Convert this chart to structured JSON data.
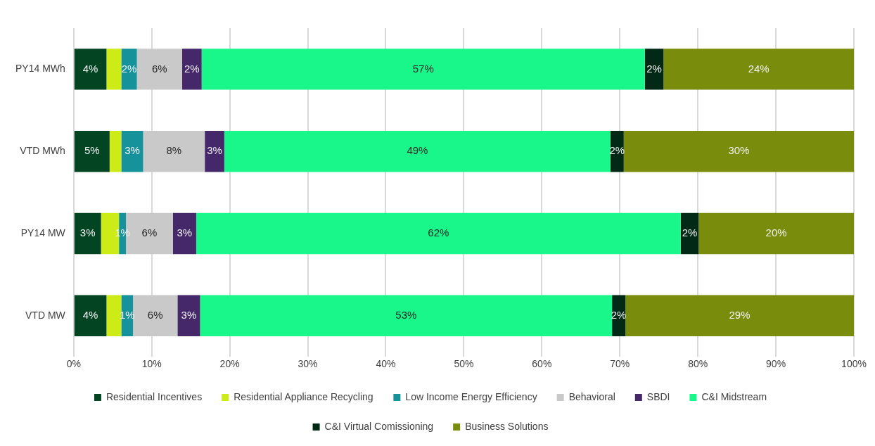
{
  "chart_data": {
    "type": "bar",
    "orientation": "horizontal",
    "stacked": true,
    "categories": [
      "PY14 MWh",
      "VTD MWh",
      "PY14 MW",
      "VTD MW"
    ],
    "series": [
      {
        "name": "Residential Incentives",
        "color": "#034423",
        "values": [
          4.2,
          4.6,
          3.5,
          4.2
        ],
        "value_labels": [
          "4%",
          "5%",
          "3%",
          "4%"
        ]
      },
      {
        "name": "Residential Appliance Recycling",
        "color": "#cdeb16",
        "values": [
          1.9,
          1.5,
          2.3,
          1.9
        ],
        "value_labels": [
          null,
          null,
          null,
          null
        ]
      },
      {
        "name": "Low Income Energy Efficiency",
        "color": "#16929b",
        "values": [
          2.0,
          2.8,
          0.9,
          1.5
        ],
        "value_labels": [
          "2%",
          "3%",
          "1%",
          "1%"
        ]
      },
      {
        "name": "Behavioral",
        "color": "#c9c9c9",
        "values": [
          5.8,
          7.9,
          6.0,
          5.7
        ],
        "value_labels": [
          "6%",
          "8%",
          "6%",
          "6%"
        ]
      },
      {
        "name": "SBDI",
        "color": "#44286a",
        "values": [
          2.5,
          2.5,
          3.0,
          2.9
        ],
        "value_labels": [
          "2%",
          "3%",
          "3%",
          "3%"
        ]
      },
      {
        "name": "C&I Midstream",
        "color": "#19f78b",
        "values": [
          56.8,
          49.5,
          62.1,
          52.8
        ],
        "value_labels": [
          "57%",
          "49%",
          "62%",
          "53%"
        ]
      },
      {
        "name": "C&I Virtual Comissioning",
        "color": "#022916",
        "values": [
          2.4,
          1.7,
          2.3,
          1.7
        ],
        "value_labels": [
          "2%",
          "2%",
          "2%",
          "2%"
        ]
      },
      {
        "name": "Business Solutions",
        "color": "#7a8c0c",
        "values": [
          24.4,
          29.5,
          19.9,
          29.3
        ],
        "value_labels": [
          "24%",
          "30%",
          "20%",
          "29%"
        ]
      }
    ],
    "xlim": [
      0,
      100
    ],
    "xticks": [
      {
        "value": 0,
        "label": "0%"
      },
      {
        "value": 10,
        "label": "10%"
      },
      {
        "value": 20,
        "label": "20%"
      },
      {
        "value": 30,
        "label": "30%"
      },
      {
        "value": 40,
        "label": "40%"
      },
      {
        "value": 50,
        "label": "50%"
      },
      {
        "value": 60,
        "label": "60%"
      },
      {
        "value": 70,
        "label": "70%"
      },
      {
        "value": 80,
        "label": "80%"
      },
      {
        "value": 90,
        "label": "90%"
      },
      {
        "value": 100,
        "label": "100%"
      }
    ],
    "grid": "x",
    "legend": "bottom"
  }
}
